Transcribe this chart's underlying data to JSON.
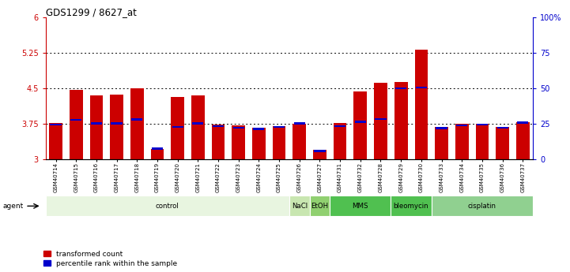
{
  "title": "GDS1299 / 8627_at",
  "samples": [
    "GSM40714",
    "GSM40715",
    "GSM40716",
    "GSM40717",
    "GSM40718",
    "GSM40719",
    "GSM40720",
    "GSM40721",
    "GSM40722",
    "GSM40723",
    "GSM40724",
    "GSM40725",
    "GSM40726",
    "GSM40727",
    "GSM40731",
    "GSM40732",
    "GSM40728",
    "GSM40729",
    "GSM40730",
    "GSM40733",
    "GSM40734",
    "GSM40735",
    "GSM40736",
    "GSM40737"
  ],
  "red_values": [
    3.76,
    4.47,
    4.35,
    4.37,
    4.5,
    3.22,
    4.32,
    4.35,
    3.74,
    3.71,
    3.66,
    3.7,
    3.75,
    3.2,
    3.77,
    4.43,
    4.62,
    4.63,
    5.32,
    3.69,
    3.75,
    3.75,
    3.68,
    3.79
  ],
  "blue_values": [
    3.735,
    3.83,
    3.76,
    3.755,
    3.84,
    3.22,
    3.685,
    3.76,
    3.7,
    3.665,
    3.64,
    3.68,
    3.755,
    3.175,
    3.695,
    3.79,
    3.855,
    4.5,
    4.52,
    3.66,
    3.72,
    3.73,
    3.665,
    3.775
  ],
  "ymin": 3.0,
  "ymax": 6.0,
  "yticks": [
    3.0,
    3.75,
    4.5,
    5.25,
    6.0
  ],
  "ytick_labels": [
    "3",
    "3.75",
    "4.5",
    "5.25",
    "6"
  ],
  "y2ticks": [
    0,
    25,
    50,
    75,
    100
  ],
  "y2tick_labels": [
    "0",
    "25",
    "50",
    "75",
    "100%"
  ],
  "hlines": [
    3.75,
    4.5,
    5.25
  ],
  "groups": [
    {
      "label": "control",
      "start": 0,
      "end": 12,
      "color": "#e8f5e0"
    },
    {
      "label": "NaCl",
      "start": 12,
      "end": 13,
      "color": "#c8e6b0"
    },
    {
      "label": "EtOH",
      "start": 13,
      "end": 14,
      "color": "#90d070"
    },
    {
      "label": "MMS",
      "start": 14,
      "end": 17,
      "color": "#50c050"
    },
    {
      "label": "bleomycin",
      "start": 17,
      "end": 19,
      "color": "#50c050"
    },
    {
      "label": "cisplatin",
      "start": 19,
      "end": 24,
      "color": "#90d090"
    }
  ],
  "bar_color": "#cc0000",
  "blue_color": "#0000cc",
  "bar_width": 0.65,
  "fig_width": 7.21,
  "fig_height": 3.45,
  "dpi": 100,
  "background_color": "#ffffff",
  "tick_color_left": "#cc0000",
  "tick_color_right": "#0000cc",
  "legend_red": "transformed count",
  "legend_blue": "percentile rank within the sample"
}
